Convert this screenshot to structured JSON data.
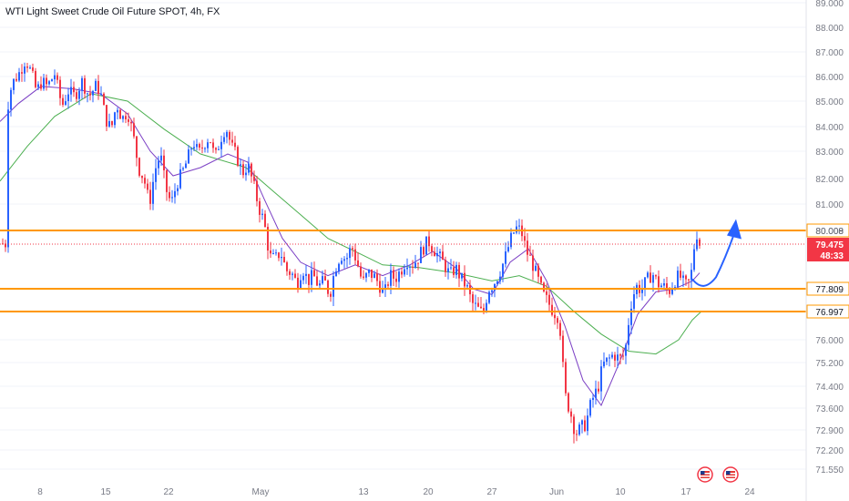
{
  "header": {
    "title": "WTI Light Sweet Crude Oil Future SPOT, 4h, FX"
  },
  "colors": {
    "up": "#2962ff",
    "down": "#f23645",
    "ma_fast": "#7b3fc4",
    "ma_slow": "#4caf50",
    "level": "#ff9800",
    "price": "#f23645",
    "arrow": "#2962ff"
  },
  "chart_data": {
    "type": "candlestick",
    "symbol": "WTI Light Sweet Crude Oil Future SPOT",
    "timeframe": "4h",
    "source": "FX",
    "y_ticks": [
      "89.000",
      "88.000",
      "87.000",
      "86.000",
      "85.000",
      "84.000",
      "83.000",
      "82.000",
      "81.000",
      "80.000",
      "76.000",
      "75.200",
      "74.400",
      "73.600",
      "72.900",
      "72.200",
      "71.550"
    ],
    "x_ticks": [
      "8",
      "15",
      "22",
      "May",
      "13",
      "20",
      "27",
      "Jun",
      "10",
      "17",
      "24"
    ],
    "levels": [
      {
        "price": 80.008,
        "label": "80.008"
      },
      {
        "price": 77.809,
        "label": "77.809"
      },
      {
        "price": 76.997,
        "label": "76.997"
      }
    ],
    "last_price": {
      "price": 79.475,
      "label": "79.475",
      "countdown": "48:33"
    },
    "close_path": [
      [
        8,
        84.7
      ],
      [
        13,
        85.7
      ],
      [
        22,
        86.2
      ],
      [
        28,
        86.7
      ],
      [
        35,
        86.1
      ],
      [
        40,
        85.4
      ],
      [
        46,
        85.8
      ],
      [
        52,
        85.6
      ],
      [
        60,
        86.1
      ],
      [
        68,
        84.8
      ],
      [
        75,
        85.4
      ],
      [
        82,
        85.2
      ],
      [
        90,
        85.8
      ],
      [
        98,
        85.2
      ],
      [
        105,
        85.6
      ],
      [
        110,
        85.4
      ],
      [
        116,
        84.3
      ],
      [
        122,
        83.9
      ],
      [
        128,
        84.9
      ],
      [
        134,
        84.3
      ],
      [
        140,
        84.6
      ],
      [
        146,
        83.7
      ],
      [
        152,
        82.4
      ],
      [
        158,
        82.0
      ],
      [
        164,
        81.0
      ],
      [
        170,
        82.3
      ],
      [
        176,
        82.9
      ],
      [
        182,
        81.6
      ],
      [
        188,
        81.0
      ],
      [
        194,
        81.8
      ],
      [
        200,
        82.2
      ],
      [
        206,
        82.7
      ],
      [
        212,
        83.4
      ],
      [
        218,
        82.9
      ],
      [
        224,
        83.3
      ],
      [
        230,
        83.6
      ],
      [
        236,
        82.7
      ],
      [
        242,
        83.5
      ],
      [
        248,
        84.0
      ],
      [
        254,
        83.2
      ],
      [
        260,
        82.8
      ],
      [
        266,
        82.2
      ],
      [
        272,
        82.5
      ],
      [
        278,
        81.8
      ],
      [
        284,
        80.9
      ],
      [
        290,
        80.3
      ],
      [
        296,
        79.0
      ],
      [
        302,
        78.9
      ],
      [
        308,
        79.2
      ],
      [
        314,
        78.5
      ],
      [
        320,
        78.4
      ],
      [
        326,
        78.0
      ],
      [
        332,
        78.6
      ],
      [
        338,
        78.1
      ],
      [
        344,
        78.3
      ],
      [
        350,
        77.9
      ],
      [
        356,
        78.1
      ],
      [
        362,
        77.6
      ],
      [
        368,
        78.6
      ],
      [
        374,
        79.1
      ],
      [
        380,
        78.9
      ],
      [
        386,
        79.4
      ],
      [
        392,
        78.8
      ],
      [
        398,
        78.0
      ],
      [
        404,
        78.4
      ],
      [
        410,
        78.3
      ],
      [
        416,
        78.0
      ],
      [
        422,
        77.6
      ],
      [
        428,
        78.3
      ],
      [
        434,
        78.2
      ],
      [
        440,
        78.5
      ],
      [
        446,
        78.9
      ],
      [
        452,
        78.7
      ],
      [
        458,
        78.9
      ],
      [
        464,
        79.3
      ],
      [
        470,
        79.6
      ],
      [
        476,
        79.3
      ],
      [
        482,
        79.0
      ],
      [
        488,
        78.7
      ],
      [
        494,
        78.3
      ],
      [
        500,
        78.6
      ],
      [
        506,
        78.2
      ],
      [
        512,
        77.9
      ],
      [
        518,
        77.3
      ],
      [
        524,
        77.1
      ],
      [
        530,
        76.9
      ],
      [
        536,
        77.8
      ],
      [
        542,
        78.0
      ],
      [
        548,
        78.4
      ],
      [
        554,
        78.9
      ],
      [
        560,
        79.6
      ],
      [
        566,
        80.1
      ],
      [
        572,
        80.0
      ],
      [
        578,
        79.2
      ],
      [
        584,
        78.8
      ],
      [
        590,
        78.2
      ],
      [
        596,
        77.6
      ],
      [
        602,
        77.3
      ],
      [
        608,
        77.0
      ],
      [
        614,
        76.8
      ],
      [
        620,
        74.1
      ],
      [
        626,
        73.5
      ],
      [
        632,
        72.8
      ],
      [
        638,
        72.9
      ],
      [
        644,
        73.2
      ],
      [
        650,
        73.9
      ],
      [
        656,
        74.3
      ],
      [
        662,
        75.1
      ],
      [
        668,
        75.3
      ],
      [
        674,
        75.5
      ],
      [
        680,
        75.3
      ],
      [
        686,
        75.5
      ],
      [
        692,
        77.2
      ],
      [
        698,
        77.9
      ],
      [
        704,
        77.8
      ],
      [
        710,
        78.1
      ],
      [
        716,
        78.4
      ],
      [
        722,
        78.0
      ],
      [
        728,
        77.9
      ],
      [
        734,
        77.7
      ],
      [
        740,
        78.1
      ],
      [
        746,
        78.3
      ],
      [
        752,
        77.9
      ],
      [
        758,
        78.1
      ],
      [
        764,
        80.0
      ],
      [
        768,
        79.5
      ]
    ],
    "ma_fast_path": [
      [
        0,
        84.2
      ],
      [
        20,
        84.9
      ],
      [
        45,
        85.6
      ],
      [
        80,
        85.5
      ],
      [
        110,
        85.3
      ],
      [
        140,
        84.5
      ],
      [
        165,
        83.0
      ],
      [
        190,
        82.1
      ],
      [
        220,
        82.4
      ],
      [
        250,
        82.9
      ],
      [
        272,
        82.6
      ],
      [
        290,
        81.2
      ],
      [
        310,
        79.7
      ],
      [
        330,
        78.8
      ],
      [
        360,
        78.3
      ],
      [
        390,
        78.7
      ],
      [
        420,
        78.3
      ],
      [
        450,
        78.7
      ],
      [
        475,
        79.2
      ],
      [
        500,
        78.6
      ],
      [
        520,
        77.8
      ],
      [
        540,
        77.6
      ],
      [
        560,
        78.8
      ],
      [
        580,
        79.3
      ],
      [
        600,
        78.1
      ],
      [
        620,
        76.5
      ],
      [
        640,
        74.6
      ],
      [
        660,
        73.7
      ],
      [
        680,
        75.2
      ],
      [
        700,
        76.9
      ],
      [
        720,
        77.7
      ],
      [
        740,
        77.8
      ],
      [
        760,
        78.1
      ],
      [
        768,
        78.4
      ]
    ],
    "ma_slow_path": [
      [
        0,
        81.9
      ],
      [
        30,
        83.2
      ],
      [
        60,
        84.4
      ],
      [
        100,
        85.3
      ],
      [
        140,
        85.0
      ],
      [
        180,
        83.9
      ],
      [
        220,
        82.9
      ],
      [
        270,
        82.4
      ],
      [
        300,
        81.5
      ],
      [
        330,
        80.6
      ],
      [
        360,
        79.7
      ],
      [
        390,
        79.2
      ],
      [
        420,
        78.7
      ],
      [
        460,
        78.6
      ],
      [
        500,
        78.4
      ],
      [
        540,
        78.1
      ],
      [
        570,
        78.3
      ],
      [
        600,
        77.9
      ],
      [
        630,
        77.0
      ],
      [
        660,
        76.2
      ],
      [
        690,
        75.6
      ],
      [
        720,
        75.5
      ],
      [
        745,
        76.0
      ],
      [
        760,
        76.7
      ],
      [
        770,
        77.0
      ]
    ],
    "projection": {
      "from_price": 77.9,
      "to_price": 80.3
    }
  }
}
